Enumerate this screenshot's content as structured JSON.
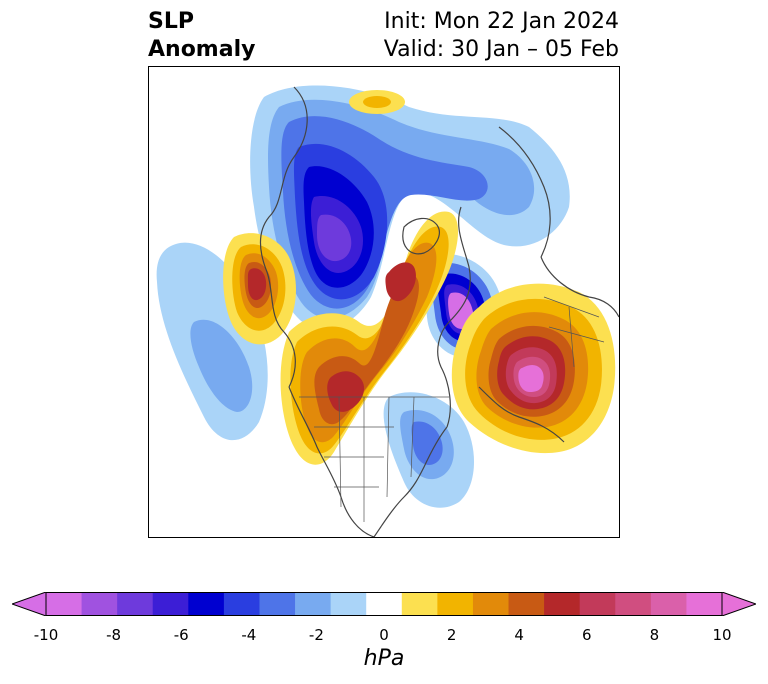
{
  "title": {
    "left_line1": "SLP",
    "left_line2": "Anomaly",
    "right_line1": "Init: Mon 22 Jan 2024",
    "right_line2": "Valid: 30 Jan – 05 Feb"
  },
  "map": {
    "region": "Northern Hemisphere / North America",
    "projection": "polar stereographic",
    "overlays": [
      "coastlines",
      "country borders",
      "state/province borders"
    ]
  },
  "colorbar": {
    "label": "hPa",
    "tick_labels": [
      "-10",
      "-8",
      "-6",
      "-4",
      "-2",
      "0",
      "2",
      "4",
      "6",
      "8",
      "10"
    ],
    "levels": [
      -10,
      -9,
      -8,
      -7,
      -6,
      -5,
      -4,
      -3,
      -2,
      -1,
      1,
      2,
      3,
      4,
      5,
      6,
      7,
      8,
      9,
      10
    ],
    "colors": [
      "#d66ee6",
      "#a052e0",
      "#6e3adc",
      "#3c1ed6",
      "#0000d0",
      "#2a3ee0",
      "#4e74e8",
      "#78aaf0",
      "#aad4f8",
      "#ffffff",
      "#fce050",
      "#f2b400",
      "#e28a0a",
      "#c85a14",
      "#b4282a",
      "#c23a5a",
      "#d04e80",
      "#da60aa",
      "#e670d8"
    ],
    "under_color": "#d66ee6",
    "over_color": "#e670d8",
    "extend": "both"
  },
  "anomaly_features": [
    {
      "type": "negative",
      "location": "Arctic Canada / Canadian Archipelago",
      "peak_hPa": -9
    },
    {
      "type": "negative",
      "location": "Greenland Sea / Iceland",
      "peak_hPa": -10
    },
    {
      "type": "negative",
      "location": "North Pacific (central)",
      "peak_hPa": -4
    },
    {
      "type": "negative",
      "location": "Western North Atlantic / Southeast US coast",
      "peak_hPa": -4
    },
    {
      "type": "positive",
      "location": "Gulf of Alaska",
      "peak_hPa": 6
    },
    {
      "type": "positive",
      "location": "Central Canada / Hudson Bay",
      "peak_hPa": 6
    },
    {
      "type": "positive",
      "location": "Western & Central Europe",
      "peak_hPa": 10
    },
    {
      "type": "positive",
      "location": "Siberia / Arctic Ocean (small)",
      "peak_hPa": 2
    }
  ]
}
